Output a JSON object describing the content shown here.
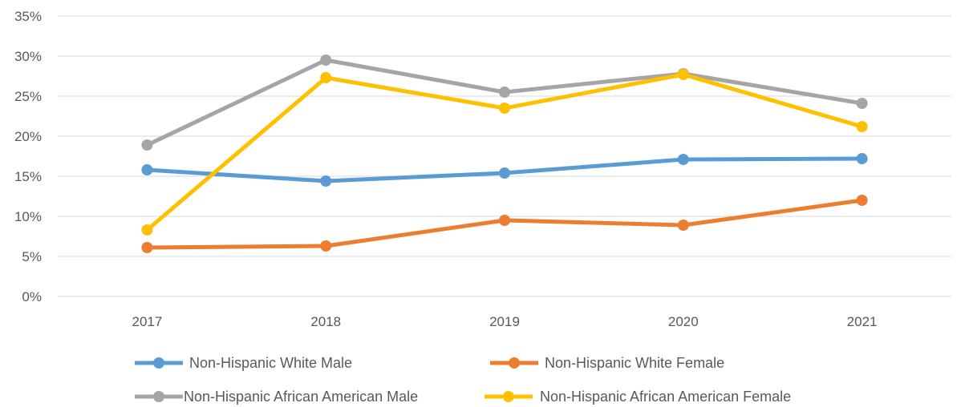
{
  "chart_data": {
    "type": "line",
    "categories": [
      "2017",
      "2018",
      "2019",
      "2020",
      "2021"
    ],
    "yticks": [
      "0%",
      "5%",
      "10%",
      "15%",
      "20%",
      "25%",
      "30%",
      "35%"
    ],
    "ylim": [
      0,
      35
    ],
    "y_unit": "%",
    "grid": "horizontal",
    "legend_position": "bottom",
    "series": [
      {
        "name": "Non-Hispanic White Male",
        "color": "#5B9BD5",
        "values": [
          15.8,
          14.4,
          15.4,
          17.1,
          17.2
        ]
      },
      {
        "name": "Non-Hispanic White Female",
        "color": "#ED7D31",
        "values": [
          6.1,
          6.3,
          9.5,
          8.9,
          12.0
        ]
      },
      {
        "name": "Non-Hispanic African American Male",
        "color": "#A5A5A5",
        "values": [
          18.9,
          29.5,
          25.5,
          27.8,
          24.1
        ]
      },
      {
        "name": "Non-Hispanic African American Female",
        "color": "#FFC000",
        "values": [
          8.3,
          27.3,
          23.5,
          27.7,
          21.2
        ]
      }
    ]
  }
}
